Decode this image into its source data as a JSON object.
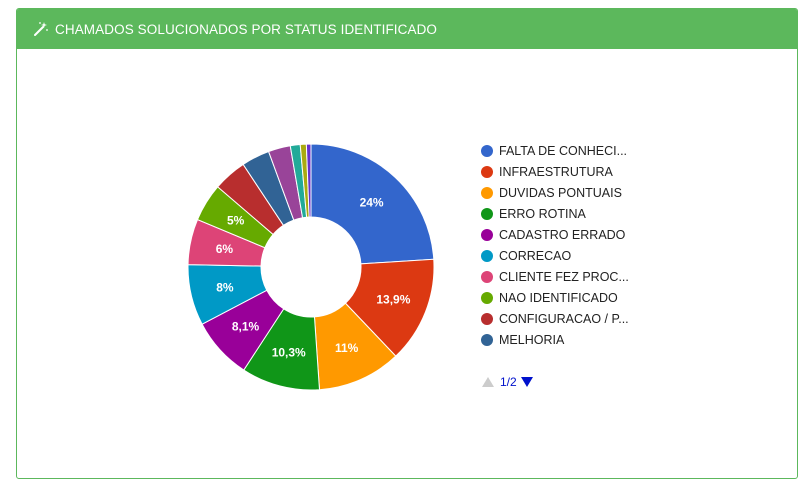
{
  "header": {
    "title": "CHAMADOS SOLUCIONADOS POR STATUS IDENTIFICADO",
    "icon": "magic-wand-icon",
    "color": "#5cb85c"
  },
  "chart_data": {
    "type": "pie",
    "donut": true,
    "title": "CHAMADOS SOLUCIONADOS POR STATUS IDENTIFICADO",
    "slices": [
      {
        "name": "FALTA DE CONHECI...",
        "value": 24.0,
        "label": "24%",
        "color": "#3366cc"
      },
      {
        "name": "INFRAESTRUTURA",
        "value": 13.9,
        "label": "13,9%",
        "color": "#dc3912"
      },
      {
        "name": "DUVIDAS PONTUAIS",
        "value": 11.0,
        "label": "11%",
        "color": "#ff9900"
      },
      {
        "name": "ERRO ROTINA",
        "value": 10.3,
        "label": "10,3%",
        "color": "#109618"
      },
      {
        "name": "CADASTRO ERRADO",
        "value": 8.1,
        "label": "8,1%",
        "color": "#990099"
      },
      {
        "name": "CORRECAO",
        "value": 8.0,
        "label": "8%",
        "color": "#0099c6"
      },
      {
        "name": "CLIENTE FEZ PROC...",
        "value": 6.0,
        "label": "6%",
        "color": "#dd4477"
      },
      {
        "name": "NAO IDENTIFICADO",
        "value": 5.0,
        "label": "5%",
        "color": "#66aa00"
      },
      {
        "name": "CONFIGURACAO / P...",
        "value": 4.4,
        "label": "",
        "color": "#b82e2e"
      },
      {
        "name": "MELHORIA",
        "value": 3.7,
        "label": "",
        "color": "#316395"
      },
      {
        "name": "",
        "value": 2.9,
        "label": "",
        "color": "#994499"
      },
      {
        "name": "",
        "value": 1.3,
        "label": "",
        "color": "#22aa99"
      },
      {
        "name": "",
        "value": 0.8,
        "label": "",
        "color": "#aaaa11"
      },
      {
        "name": "",
        "value": 0.6,
        "label": "",
        "color": "#6633cc"
      }
    ],
    "legend_position": "right",
    "legend_visible_count": 10
  },
  "legend": {
    "pager": {
      "text": "1/2",
      "color": "#0011cc"
    }
  }
}
